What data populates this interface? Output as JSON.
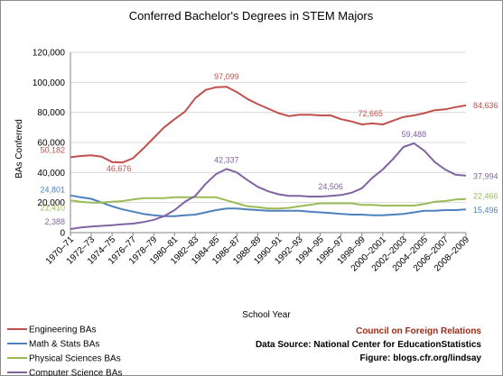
{
  "chart_data": {
    "type": "line",
    "title": "Conferred Bachelor's Degrees in STEM Majors",
    "ylabel": "BAs Conferred",
    "xlabel": "School Year",
    "ylim": [
      0,
      120000
    ],
    "yticks": [
      "0",
      "20,000",
      "40,000",
      "60,000",
      "80,000",
      "100,000",
      "120,000"
    ],
    "ytick_values": [
      0,
      20000,
      40000,
      60000,
      80000,
      100000,
      120000
    ],
    "grid": true,
    "legend_position": "bottom-left",
    "categories": [
      "1970–71",
      "1971–72",
      "1972–73",
      "1973–74",
      "1974–75",
      "1975–76",
      "1976–77",
      "1977–78",
      "1978–79",
      "1979–80",
      "1980–81",
      "1981–82",
      "1982–83",
      "1983–84",
      "1984–85",
      "1985–86",
      "1986–87",
      "1987–88",
      "1988–89",
      "1989–90",
      "1990–91",
      "1991–92",
      "1992–93",
      "1993–94",
      "1994–95",
      "1995–96",
      "1996–97",
      "1997–98",
      "1998–99",
      "1999–2000",
      "2000–2001",
      "2001–2002",
      "2002–2003",
      "2003–2004",
      "2004–2005",
      "2005–2006",
      "2006–2007",
      "2007–2008",
      "2008–2009"
    ],
    "xtick_labels": [
      "1970–71",
      "1972–73",
      "1974–75",
      "1976–77",
      "1978–79",
      "1980–81",
      "1982–83",
      "1984–85",
      "1986–87",
      "1988–89",
      "1990–91",
      "1992–93",
      "1994–95",
      "1996–97",
      "1998–99",
      "2000–2001",
      "2002–2003",
      "2004–2005",
      "2006–2007",
      "2008–2009"
    ],
    "series": [
      {
        "name": "Engineering BAs",
        "color": "#c0504d",
        "values": [
          50182,
          51000,
          51500,
          50500,
          47000,
          46676,
          49500,
          56000,
          63000,
          70000,
          75500,
          80500,
          89500,
          95000,
          96800,
          97099,
          93500,
          89000,
          85500,
          82500,
          79500,
          77500,
          78500,
          78500,
          78000,
          78000,
          75500,
          74000,
          72000,
          72665,
          72000,
          74500,
          77000,
          78000,
          79500,
          81500,
          82000,
          83500,
          84636
        ],
        "labels": [
          [
            0,
            "50,182"
          ],
          [
            5,
            "46,676"
          ],
          [
            15,
            "97,099"
          ],
          [
            29,
            "72,665"
          ],
          [
            38,
            "84,636"
          ]
        ]
      },
      {
        "name": "Math & Stats BAs",
        "color": "#4f81bd",
        "values": [
          24801,
          23500,
          22500,
          20000,
          17500,
          15500,
          14000,
          12500,
          11500,
          11000,
          11000,
          11500,
          12000,
          13500,
          15000,
          16000,
          16000,
          15500,
          15000,
          14500,
          14500,
          14500,
          14500,
          14000,
          13500,
          13000,
          12500,
          12000,
          12000,
          11500,
          11500,
          12000,
          12500,
          13500,
          14500,
          14500,
          15000,
          15000,
          15496
        ],
        "labels": [
          [
            0,
            "24,801"
          ],
          [
            38,
            "15,496"
          ]
        ]
      },
      {
        "name": "Physical Sciences BAs",
        "color": "#9bbb59",
        "values": [
          21410,
          20500,
          20000,
          20000,
          20500,
          21000,
          22000,
          23000,
          23000,
          23000,
          23500,
          23500,
          23500,
          23500,
          23500,
          21500,
          19500,
          17500,
          17000,
          16000,
          16000,
          16500,
          17500,
          18500,
          19500,
          19500,
          19500,
          19500,
          18500,
          18500,
          18000,
          18000,
          18000,
          18000,
          19000,
          20500,
          21000,
          22000,
          22466
        ],
        "labels": [
          [
            0,
            "21,410"
          ],
          [
            38,
            "22,466"
          ]
        ]
      },
      {
        "name": "Computer Science BAs",
        "color": "#8064a2",
        "values": [
          2388,
          3500,
          4000,
          4500,
          5000,
          5500,
          6000,
          7000,
          8500,
          11000,
          15000,
          20500,
          24500,
          32500,
          39000,
          42337,
          40000,
          35000,
          30500,
          27500,
          25500,
          24500,
          24500,
          24000,
          24000,
          24506,
          25000,
          26500,
          29500,
          36500,
          42000,
          49000,
          57000,
          59488,
          54500,
          47000,
          42000,
          38500,
          37994
        ],
        "labels": [
          [
            0,
            "2,388"
          ],
          [
            15,
            "42,337"
          ],
          [
            25,
            "24,506"
          ],
          [
            33,
            "59,488"
          ],
          [
            38,
            "37,994"
          ]
        ]
      }
    ],
    "credits": {
      "org": "Council on Foreign Relations",
      "source": "Data Source: National Center for EducationStatistics",
      "figure": "Figure: blogs.cfr.org/lindsay"
    }
  }
}
